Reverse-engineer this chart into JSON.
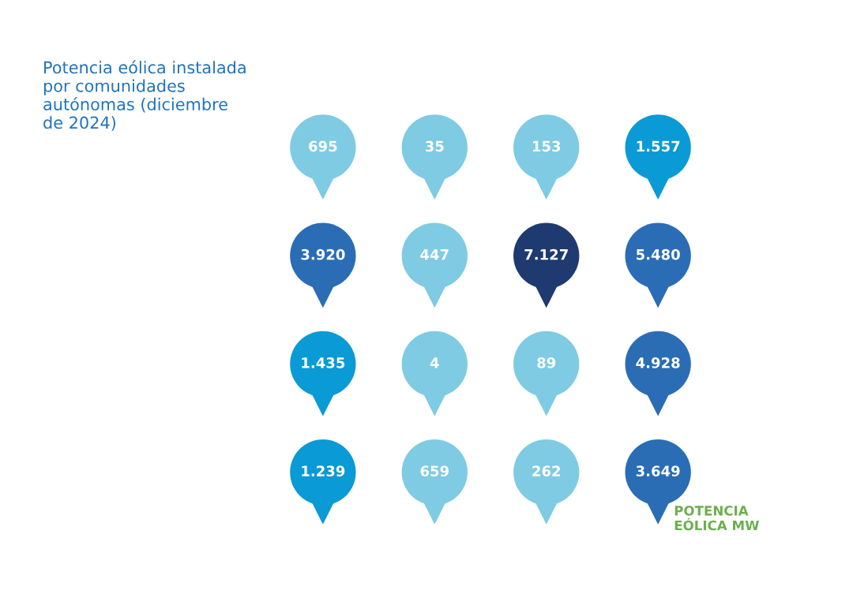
{
  "chart_data": {
    "type": "other",
    "title": "Potencia eólica instalada por comunidades autónomas (diciembre de 2024)",
    "categories": [
      null,
      null,
      null,
      null,
      null,
      null,
      null,
      null,
      null,
      null,
      null,
      null,
      null,
      null,
      null,
      null
    ],
    "values": [
      695,
      35,
      153,
      1557,
      3920,
      447,
      7127,
      5480,
      1435,
      4,
      89,
      4928,
      1239,
      659,
      262,
      3649
    ],
    "value_labels": [
      "695",
      "35",
      "153",
      "1.557",
      "3.920",
      "447",
      "7.127",
      "5.480",
      "1.435",
      "4",
      "89",
      "4.928",
      "1.239",
      "659",
      "262",
      "3.649"
    ],
    "colors": [
      "#7ecbe3",
      "#7ecbe3",
      "#7ecbe3",
      "#0a9ad6",
      "#2a6db5",
      "#7ecbe3",
      "#1f3a70",
      "#2a6db5",
      "#0a9ad6",
      "#7ecbe3",
      "#7ecbe3",
      "#2a6db5",
      "#0a9ad6",
      "#7ecbe3",
      "#7ecbe3",
      "#2a6db5"
    ],
    "annotations": [
      "POTENCIA EÓLICA MW"
    ]
  }
}
